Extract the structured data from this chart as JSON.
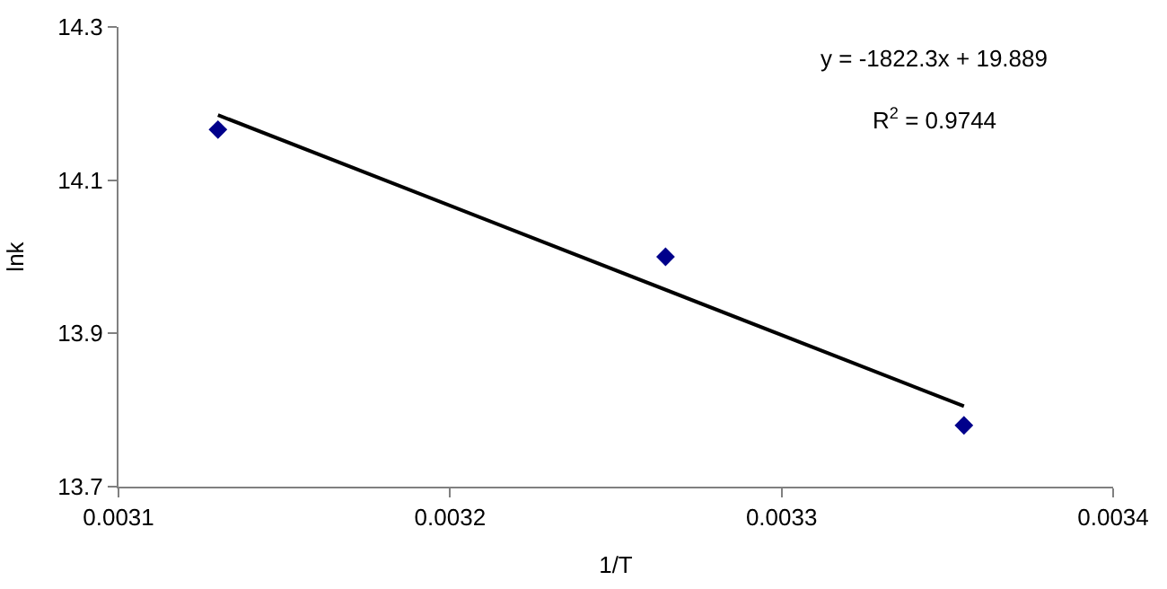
{
  "chart_data": {
    "type": "scatter",
    "xlabel": "1/T",
    "ylabel": "lnk",
    "annotations": [
      "y = -1822.3x + 19.889",
      "R$^{2}$ = 0.9744"
    ],
    "series": [
      {
        "color": "#00008b",
        "marker": "diamond",
        "x": [
          0.00313,
          0.003265,
          0.003355
        ],
        "values": [
          14.166,
          14.0,
          13.78
        ]
      },
      {
        "type": "line",
        "color": "#000000",
        "marker": "none",
        "x": [
          0.00313,
          0.003355
        ],
        "values": [
          14.185,
          13.805
        ]
      }
    ],
    "xlim": [
      0.0031,
      0.0034
    ],
    "xticks": [
      0.0031,
      0.0032,
      0.0033,
      0.0034
    ],
    "ylim": [
      13.7,
      14.3
    ],
    "yticks": [
      13.7,
      13.9,
      14.1,
      14.3
    ]
  }
}
